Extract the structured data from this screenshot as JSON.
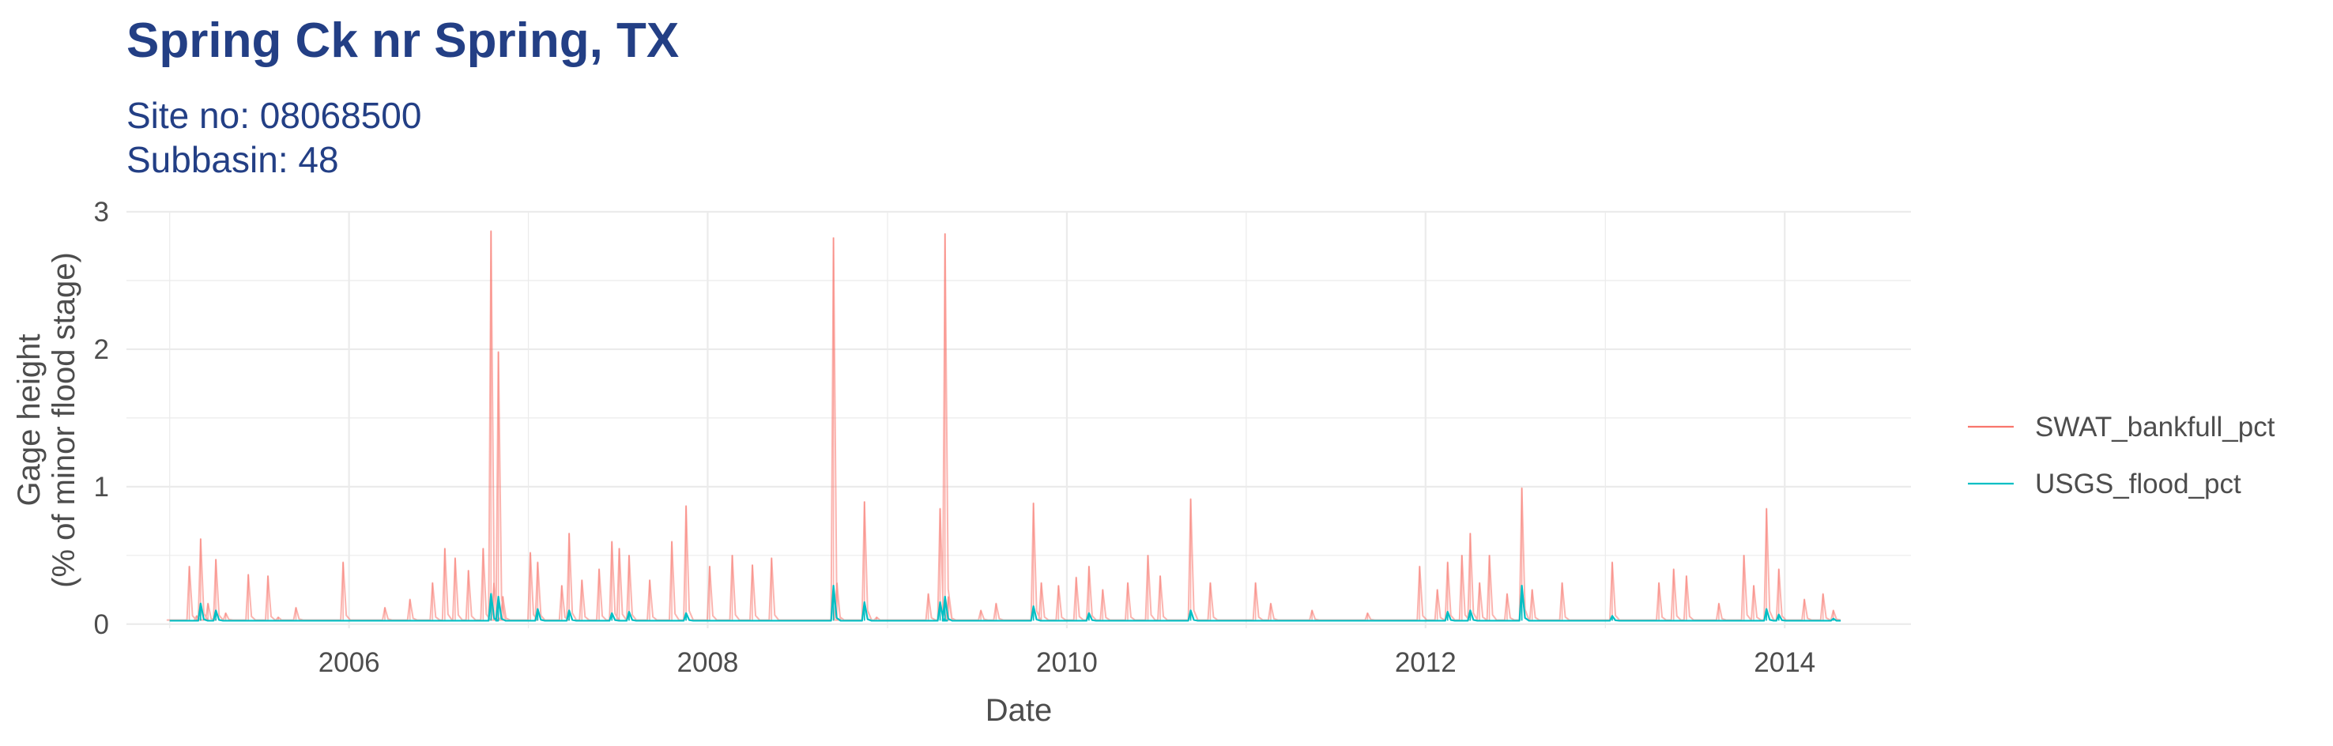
{
  "title": "Spring Ck nr Spring, TX",
  "subtitle_lines": [
    "Site no: 08068500",
    "Subbasin: 48"
  ],
  "colors": {
    "title": "#233f85",
    "swat": "#f8766d",
    "usgs": "#00bfc4",
    "grid": "#ebebeb",
    "text": "#4d4d4d"
  },
  "chart_data": {
    "type": "line",
    "xlabel": "Date",
    "ylabel_lines": [
      "Gage height",
      "(% of minor flood stage)"
    ],
    "xlim": [
      "2004-10-05",
      "2014-09-15"
    ],
    "ylim": [
      -0.03,
      3.0
    ],
    "x_ticks": [
      "2006-01-01",
      "2008-01-01",
      "2010-01-01",
      "2012-01-01",
      "2014-01-01"
    ],
    "x_tick_labels": [
      "2006",
      "2008",
      "2010",
      "2012",
      "2014"
    ],
    "y_ticks": [
      0,
      1,
      2,
      3
    ],
    "y_tick_labels": [
      "0",
      "1",
      "2",
      "3"
    ],
    "grid": true,
    "legend_position": "right",
    "series": [
      {
        "name": "SWAT_bankfull_pct",
        "color": "#f8766d",
        "opacity": 0.55,
        "baseline": 0.03,
        "points": [
          [
            "2005-01-01",
            0.03
          ],
          [
            "2005-02-10",
            0.42
          ],
          [
            "2005-02-25",
            0.06
          ],
          [
            "2005-03-05",
            0.62
          ],
          [
            "2005-03-20",
            0.15
          ],
          [
            "2005-04-05",
            0.47
          ],
          [
            "2005-04-25",
            0.08
          ],
          [
            "2005-06-10",
            0.36
          ],
          [
            "2005-07-20",
            0.35
          ],
          [
            "2005-08-10",
            0.05
          ],
          [
            "2005-09-15",
            0.12
          ],
          [
            "2005-12-20",
            0.45
          ],
          [
            "2006-03-15",
            0.12
          ],
          [
            "2006-05-05",
            0.18
          ],
          [
            "2006-06-20",
            0.3
          ],
          [
            "2006-07-15",
            0.55
          ],
          [
            "2006-08-05",
            0.48
          ],
          [
            "2006-09-01",
            0.39
          ],
          [
            "2006-10-01",
            0.55
          ],
          [
            "2006-10-17",
            2.86
          ],
          [
            "2006-10-23",
            0.3
          ],
          [
            "2006-11-01",
            1.98
          ],
          [
            "2006-11-10",
            0.2
          ],
          [
            "2007-01-05",
            0.52
          ],
          [
            "2007-01-20",
            0.45
          ],
          [
            "2007-03-10",
            0.28
          ],
          [
            "2007-03-25",
            0.66
          ],
          [
            "2007-04-20",
            0.32
          ],
          [
            "2007-05-25",
            0.4
          ],
          [
            "2007-06-20",
            0.6
          ],
          [
            "2007-07-05",
            0.55
          ],
          [
            "2007-07-25",
            0.5
          ],
          [
            "2007-09-05",
            0.32
          ],
          [
            "2007-10-20",
            0.6
          ],
          [
            "2007-11-18",
            0.86
          ],
          [
            "2008-01-05",
            0.42
          ],
          [
            "2008-02-20",
            0.5
          ],
          [
            "2008-04-01",
            0.43
          ],
          [
            "2008-05-10",
            0.48
          ],
          [
            "2008-09-13",
            2.81
          ],
          [
            "2008-09-20",
            0.3
          ],
          [
            "2008-11-15",
            0.89
          ],
          [
            "2008-12-10",
            0.05
          ],
          [
            "2009-03-25",
            0.22
          ],
          [
            "2009-04-18",
            0.84
          ],
          [
            "2009-04-28",
            2.84
          ],
          [
            "2009-05-05",
            0.2
          ],
          [
            "2009-07-10",
            0.1
          ],
          [
            "2009-08-10",
            0.15
          ],
          [
            "2009-10-25",
            0.88
          ],
          [
            "2009-11-10",
            0.3
          ],
          [
            "2009-12-15",
            0.28
          ],
          [
            "2010-01-20",
            0.34
          ],
          [
            "2010-02-15",
            0.42
          ],
          [
            "2010-03-15",
            0.25
          ],
          [
            "2010-05-05",
            0.3
          ],
          [
            "2010-06-15",
            0.5
          ],
          [
            "2010-07-10",
            0.35
          ],
          [
            "2010-09-10",
            0.91
          ],
          [
            "2010-10-20",
            0.3
          ],
          [
            "2011-01-20",
            0.3
          ],
          [
            "2011-02-20",
            0.15
          ],
          [
            "2011-05-15",
            0.1
          ],
          [
            "2011-09-05",
            0.08
          ],
          [
            "2011-12-20",
            0.42
          ],
          [
            "2012-01-25",
            0.25
          ],
          [
            "2012-02-15",
            0.45
          ],
          [
            "2012-03-15",
            0.5
          ],
          [
            "2012-04-01",
            0.66
          ],
          [
            "2012-04-20",
            0.3
          ],
          [
            "2012-05-10",
            0.5
          ],
          [
            "2012-06-15",
            0.22
          ],
          [
            "2012-07-15",
            0.99
          ],
          [
            "2012-08-05",
            0.25
          ],
          [
            "2012-10-05",
            0.3
          ],
          [
            "2013-01-15",
            0.45
          ],
          [
            "2013-04-20",
            0.3
          ],
          [
            "2013-05-20",
            0.4
          ],
          [
            "2013-06-15",
            0.35
          ],
          [
            "2013-08-20",
            0.15
          ],
          [
            "2013-10-10",
            0.5
          ],
          [
            "2013-10-30",
            0.28
          ],
          [
            "2013-11-25",
            0.84
          ],
          [
            "2013-12-20",
            0.4
          ],
          [
            "2014-02-10",
            0.18
          ],
          [
            "2014-03-20",
            0.22
          ],
          [
            "2014-04-10",
            0.1
          ]
        ]
      },
      {
        "name": "USGS_flood_pct",
        "color": "#00bfc4",
        "opacity": 1,
        "baseline": 0.025,
        "points": [
          [
            "2005-03-05",
            0.15
          ],
          [
            "2005-04-05",
            0.1
          ],
          [
            "2006-10-17",
            0.22
          ],
          [
            "2006-11-01",
            0.2
          ],
          [
            "2007-01-20",
            0.11
          ],
          [
            "2007-03-25",
            0.1
          ],
          [
            "2007-06-20",
            0.08
          ],
          [
            "2007-07-25",
            0.09
          ],
          [
            "2007-11-18",
            0.08
          ],
          [
            "2008-09-13",
            0.28
          ],
          [
            "2008-11-15",
            0.16
          ],
          [
            "2009-04-18",
            0.16
          ],
          [
            "2009-04-28",
            0.2
          ],
          [
            "2009-10-25",
            0.13
          ],
          [
            "2010-02-15",
            0.08
          ],
          [
            "2010-09-10",
            0.1
          ],
          [
            "2012-02-15",
            0.09
          ],
          [
            "2012-04-01",
            0.1
          ],
          [
            "2012-07-15",
            0.28
          ],
          [
            "2013-01-15",
            0.06
          ],
          [
            "2013-11-25",
            0.11
          ],
          [
            "2013-12-20",
            0.07
          ],
          [
            "2014-04-10",
            0.04
          ]
        ]
      }
    ]
  }
}
